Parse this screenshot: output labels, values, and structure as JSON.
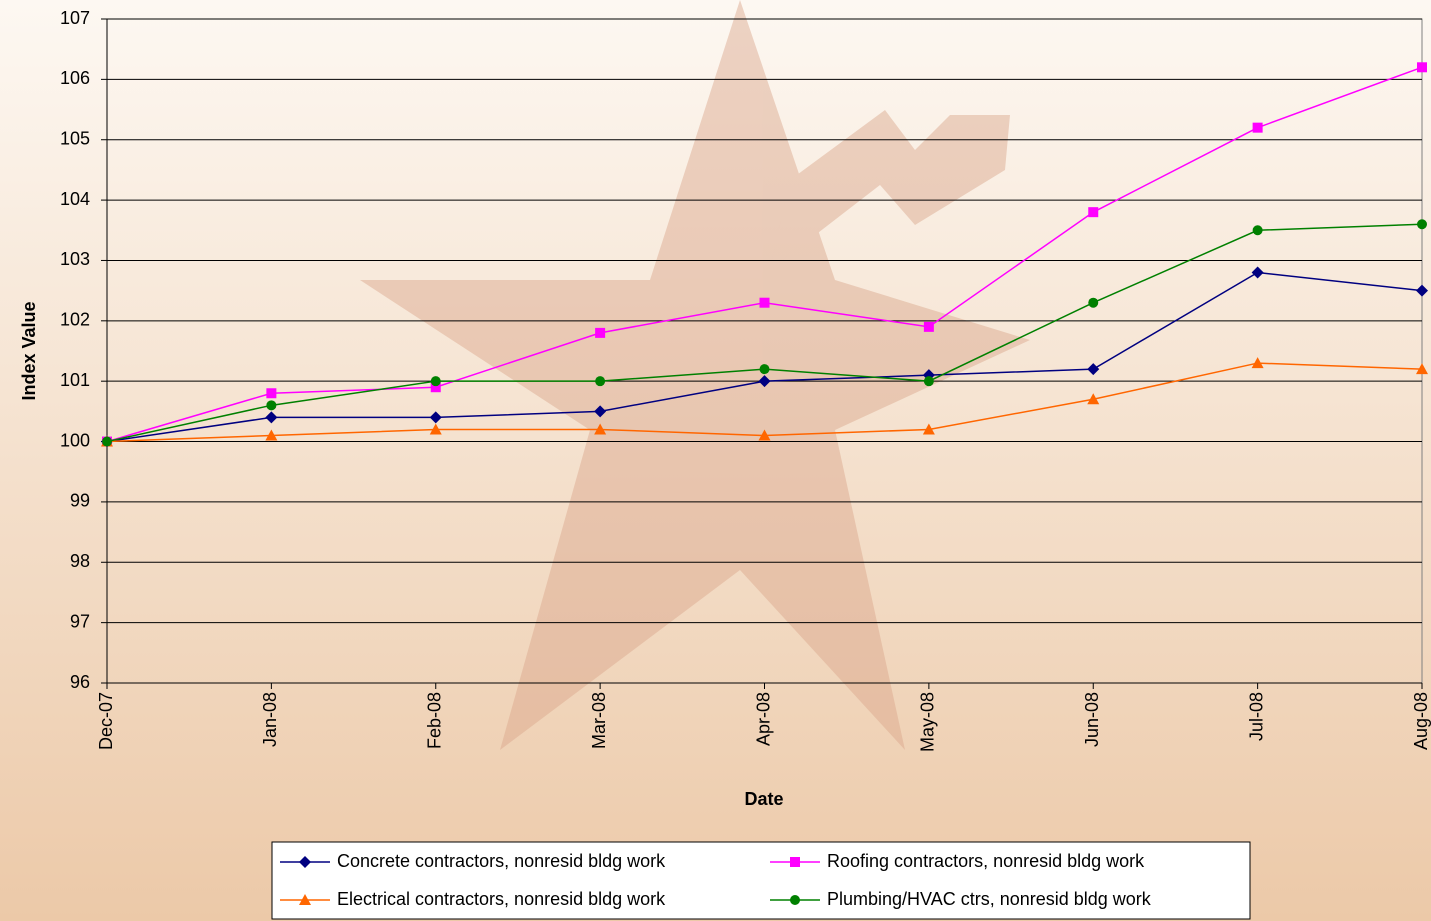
{
  "chart_data": {
    "type": "line",
    "x_label": "Date",
    "y_label": "Index Value",
    "categories": [
      "Dec-07",
      "Jan-08",
      "Feb-08",
      "Mar-08",
      "Apr-08",
      "May-08",
      "Jun-08",
      "Jul-08",
      "Aug-08"
    ],
    "series": [
      {
        "name": "Concrete contractors, nonresid bldg work",
        "color": "#000080",
        "marker": "diamond",
        "values": [
          100,
          100.4,
          100.4,
          100.5,
          101.0,
          101.1,
          101.2,
          102.8,
          102.5
        ]
      },
      {
        "name": "Roofing contractors, nonresid bldg work",
        "color": "#ff00ff",
        "marker": "square",
        "values": [
          100,
          100.8,
          100.9,
          101.8,
          102.3,
          101.9,
          103.8,
          105.2,
          106.2
        ]
      },
      {
        "name": "Electrical contractors, nonresid bldg work",
        "color": "#ff6600",
        "marker": "triangle",
        "values": [
          100,
          100.1,
          100.2,
          100.2,
          100.1,
          100.2,
          100.7,
          101.3,
          101.2
        ]
      },
      {
        "name": "Plumbing/HVAC ctrs, nonresid bldg work",
        "color": "#008000",
        "marker": "circle",
        "values": [
          100,
          100.6,
          101.0,
          101.0,
          101.2,
          101.0,
          102.3,
          103.5,
          103.6
        ]
      }
    ],
    "ylim": [
      96,
      107
    ],
    "yticks": [
      96,
      97,
      98,
      99,
      100,
      101,
      102,
      103,
      104,
      105,
      106,
      107
    ],
    "grid": true,
    "legend": "bottom"
  }
}
